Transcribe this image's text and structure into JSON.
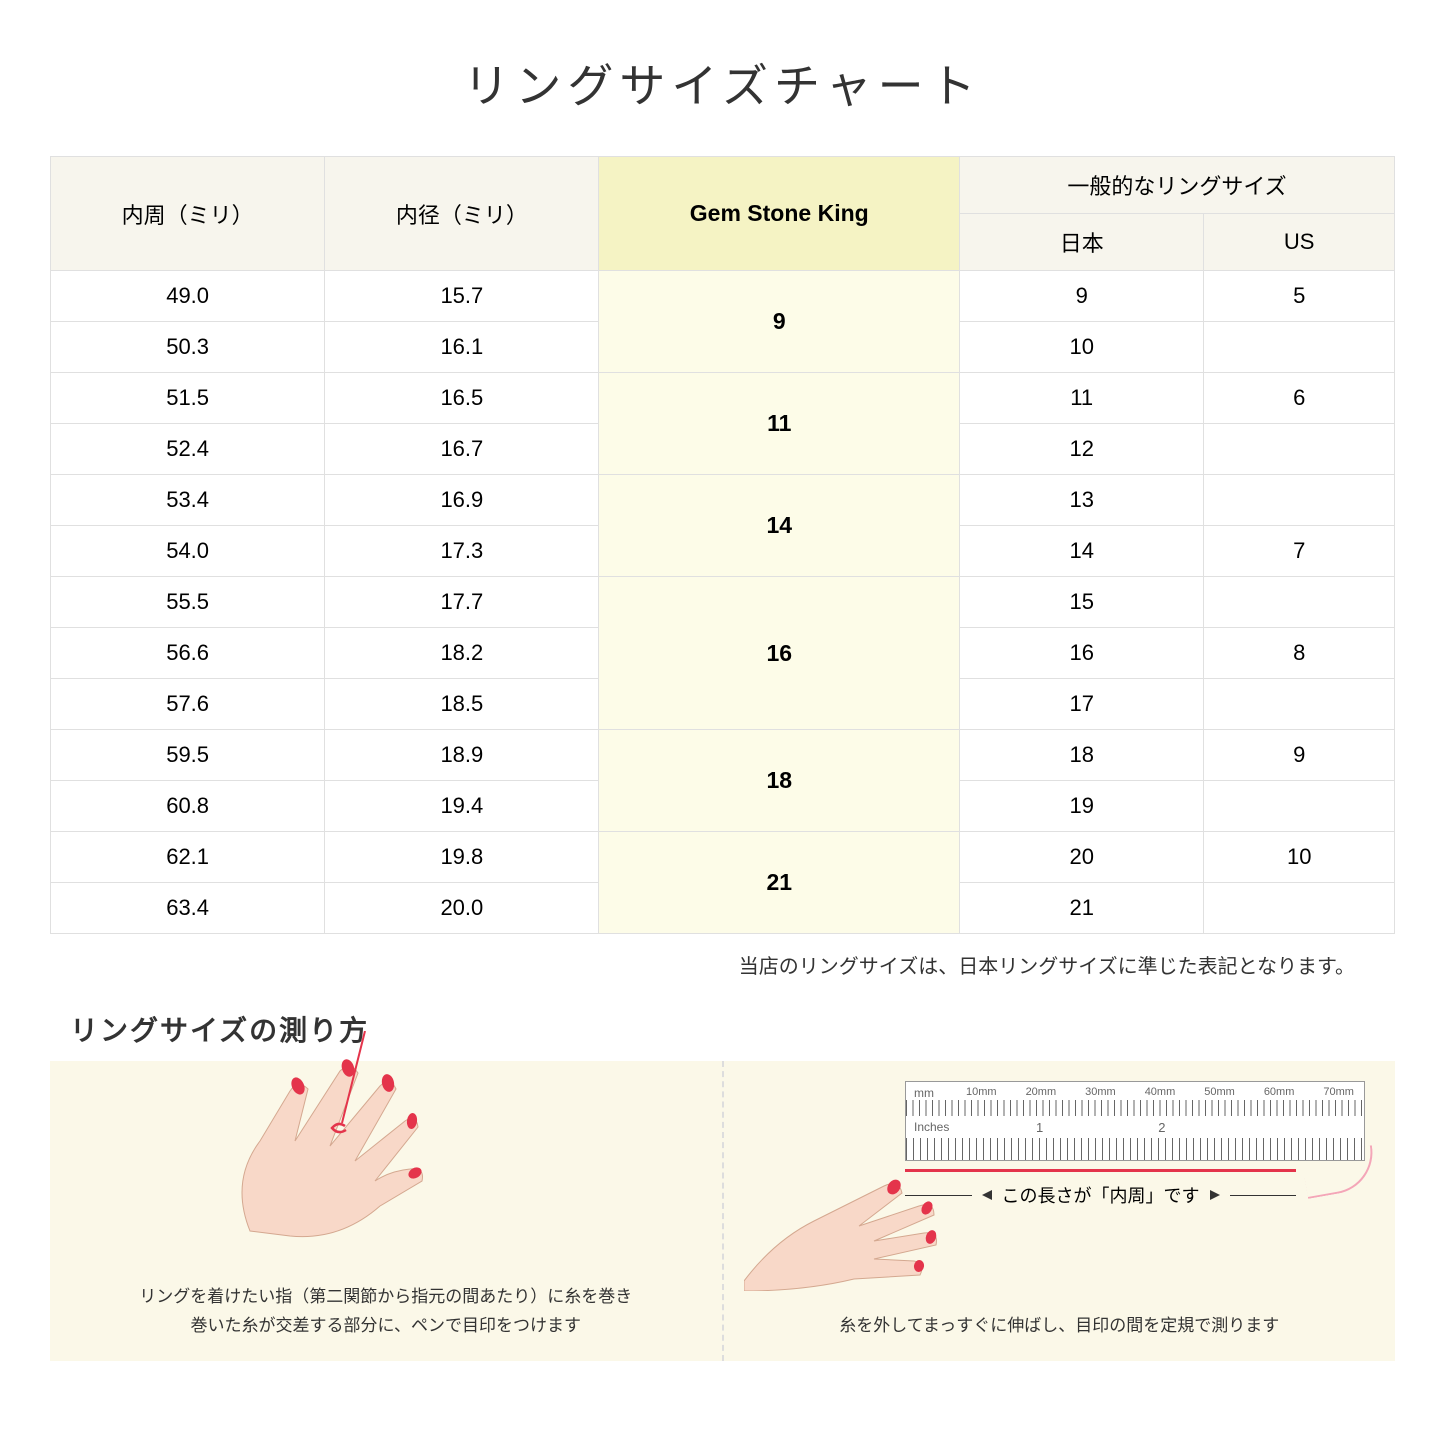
{
  "title": "リングサイズチャート",
  "headers": {
    "inner_circ": "内周（ミリ）",
    "inner_dia": "内径（ミリ）",
    "gem": "Gem Stone King",
    "general": "一般的なリングサイズ",
    "japan": "日本",
    "us": "US"
  },
  "groups": [
    {
      "gem": "9",
      "span": 2,
      "rows": [
        {
          "c": "49.0",
          "d": "15.7",
          "jp": "9",
          "us": "5"
        },
        {
          "c": "50.3",
          "d": "16.1",
          "jp": "10",
          "us": ""
        }
      ]
    },
    {
      "gem": "11",
      "span": 2,
      "rows": [
        {
          "c": "51.5",
          "d": "16.5",
          "jp": "11",
          "us": "6"
        },
        {
          "c": "52.4",
          "d": "16.7",
          "jp": "12",
          "us": ""
        }
      ]
    },
    {
      "gem": "14",
      "span": 2,
      "rows": [
        {
          "c": "53.4",
          "d": "16.9",
          "jp": "13",
          "us": ""
        },
        {
          "c": "54.0",
          "d": "17.3",
          "jp": "14",
          "us": "7"
        }
      ]
    },
    {
      "gem": "16",
      "span": 3,
      "rows": [
        {
          "c": "55.5",
          "d": "17.7",
          "jp": "15",
          "us": ""
        },
        {
          "c": "56.6",
          "d": "18.2",
          "jp": "16",
          "us": "8"
        },
        {
          "c": "57.6",
          "d": "18.5",
          "jp": "17",
          "us": ""
        }
      ]
    },
    {
      "gem": "18",
      "span": 2,
      "rows": [
        {
          "c": "59.5",
          "d": "18.9",
          "jp": "18",
          "us": "9"
        },
        {
          "c": "60.8",
          "d": "19.4",
          "jp": "19",
          "us": ""
        }
      ]
    },
    {
      "gem": "21",
      "span": 2,
      "rows": [
        {
          "c": "62.1",
          "d": "19.8",
          "jp": "20",
          "us": "10"
        },
        {
          "c": "63.4",
          "d": "20.0",
          "jp": "21",
          "us": ""
        }
      ]
    }
  ],
  "note": "当店のリングサイズは、日本リングサイズに準じた表記となります。",
  "measure_title": "リングサイズの測り方",
  "panel_left_caption": "リングを着けたい指（第二関節から指元の間あたり）に糸を巻き\n巻いた糸が交差する部分に、ペンで目印をつけます",
  "panel_right_caption": "糸を外してまっすぐに伸ばし、目印の間を定規で測ります",
  "ruler": {
    "mm_label": "mm",
    "in_label": "Inches",
    "mm_marks": [
      "10mm",
      "20mm",
      "30mm",
      "40mm",
      "50mm",
      "60mm",
      "70mm"
    ],
    "in_marks": [
      "1",
      "2"
    ]
  },
  "arrow_label": "この長さが「内周」です",
  "colors": {
    "header_bg": "#f7f5ed",
    "gem_header_bg": "#f5f3c4",
    "gem_cell_bg": "#fdfce8",
    "border": "#e0e0e0",
    "panel_bg": "#fbf8e8",
    "skin": "#f8d8c8",
    "nail": "#e4344b",
    "thread": "#e4344b"
  }
}
